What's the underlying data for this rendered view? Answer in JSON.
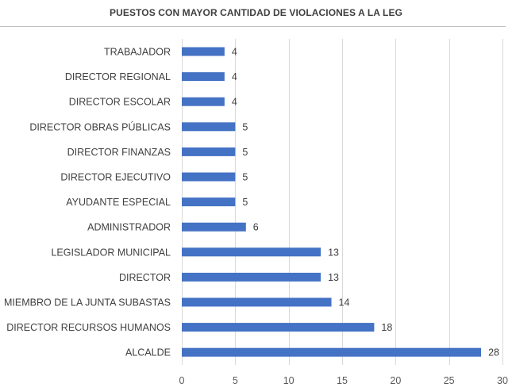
{
  "chart_data": {
    "type": "bar",
    "orientation": "horizontal",
    "title": "PUESTOS CON MAYOR CANTIDAD DE VIOLACIONES A LA LEG",
    "xlabel": "",
    "ylabel": "",
    "categories": [
      "TRABAJADOR",
      "DIRECTOR REGIONAL",
      "DIRECTOR ESCOLAR",
      "DIRECTOR OBRAS PÚBLICAS",
      "DIRECTOR FINANZAS",
      "DIRECTOR EJECUTIVO",
      "AYUDANTE ESPECIAL",
      "ADMINISTRADOR",
      "LEGISLADOR MUNICIPAL",
      "DIRECTOR",
      "MIEMBRO DE LA JUNTA SUBASTAS",
      "DIRECTOR RECURSOS HUMANOS",
      "ALCALDE"
    ],
    "values": [
      4,
      4,
      4,
      5,
      5,
      5,
      5,
      6,
      13,
      13,
      14,
      18,
      28
    ],
    "xlim": [
      0,
      30
    ],
    "xticks": [
      0,
      5,
      10,
      15,
      20,
      25,
      30
    ],
    "grid": true,
    "legend": "none",
    "bar_color": "#4472c4",
    "grid_color": "#d9d9d9"
  }
}
